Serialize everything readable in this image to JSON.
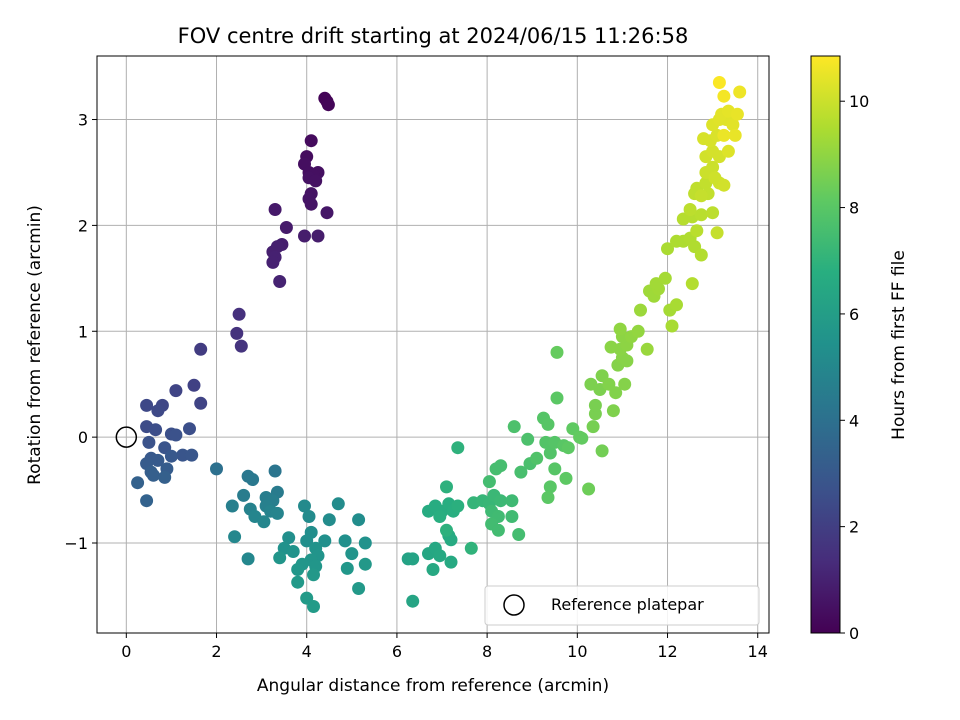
{
  "chart_data": {
    "type": "scatter",
    "title": "FOV centre drift starting at 2024/06/15 11:26:58",
    "xlabel": "Angular distance from reference (arcmin)",
    "ylabel": "Rotation from reference (arcmin)",
    "xlim": [
      -0.65,
      14.25
    ],
    "ylim": [
      -1.85,
      3.6
    ],
    "xticks": [
      0,
      2,
      4,
      6,
      8,
      10,
      12,
      14
    ],
    "yticks": [
      -1,
      0,
      1,
      2,
      3
    ],
    "grid": true,
    "legend": {
      "placement": "lower-right",
      "entries": [
        "Reference platepar"
      ]
    },
    "reference_point": {
      "x": 0,
      "y": 0
    },
    "colorbar": {
      "label": "Hours from first FF file",
      "range": [
        0,
        10.85
      ],
      "ticks": [
        0,
        2,
        4,
        6,
        8,
        10
      ],
      "colormap": "viridis"
    },
    "points": [
      {
        "x": 4.4,
        "y": 3.2,
        "c": 0.1
      },
      {
        "x": 4.45,
        "y": 3.17,
        "c": 0.1
      },
      {
        "x": 4.48,
        "y": 3.14,
        "c": 0.15
      },
      {
        "x": 4.1,
        "y": 2.8,
        "c": 0.3
      },
      {
        "x": 4.0,
        "y": 2.65,
        "c": 0.35
      },
      {
        "x": 3.95,
        "y": 2.58,
        "c": 0.4
      },
      {
        "x": 4.05,
        "y": 2.5,
        "c": 0.4
      },
      {
        "x": 4.25,
        "y": 2.5,
        "c": 0.45
      },
      {
        "x": 4.15,
        "y": 2.47,
        "c": 0.45
      },
      {
        "x": 4.05,
        "y": 2.45,
        "c": 0.5
      },
      {
        "x": 4.2,
        "y": 2.42,
        "c": 0.5
      },
      {
        "x": 4.1,
        "y": 2.3,
        "c": 0.55
      },
      {
        "x": 4.05,
        "y": 2.25,
        "c": 0.6
      },
      {
        "x": 4.1,
        "y": 2.2,
        "c": 0.6
      },
      {
        "x": 4.45,
        "y": 2.12,
        "c": 0.65
      },
      {
        "x": 3.3,
        "y": 2.15,
        "c": 0.75
      },
      {
        "x": 3.55,
        "y": 1.98,
        "c": 0.8
      },
      {
        "x": 3.95,
        "y": 1.9,
        "c": 0.85
      },
      {
        "x": 4.25,
        "y": 1.9,
        "c": 0.85
      },
      {
        "x": 3.45,
        "y": 1.82,
        "c": 0.9
      },
      {
        "x": 3.35,
        "y": 1.8,
        "c": 0.95
      },
      {
        "x": 3.25,
        "y": 1.75,
        "c": 0.95
      },
      {
        "x": 3.3,
        "y": 1.7,
        "c": 1.0
      },
      {
        "x": 3.25,
        "y": 1.65,
        "c": 1.0
      },
      {
        "x": 3.4,
        "y": 1.47,
        "c": 1.05
      },
      {
        "x": 2.5,
        "y": 1.16,
        "c": 1.5
      },
      {
        "x": 2.45,
        "y": 0.98,
        "c": 1.55
      },
      {
        "x": 2.55,
        "y": 0.86,
        "c": 1.6
      },
      {
        "x": 1.65,
        "y": 0.83,
        "c": 1.9
      },
      {
        "x": 1.5,
        "y": 0.49,
        "c": 2.1
      },
      {
        "x": 1.1,
        "y": 0.44,
        "c": 2.2
      },
      {
        "x": 1.65,
        "y": 0.32,
        "c": 2.2
      },
      {
        "x": 0.8,
        "y": 0.3,
        "c": 2.3
      },
      {
        "x": 0.45,
        "y": 0.3,
        "c": 2.35
      },
      {
        "x": 0.7,
        "y": 0.25,
        "c": 2.4
      },
      {
        "x": 0.45,
        "y": 0.1,
        "c": 2.5
      },
      {
        "x": 0.65,
        "y": 0.07,
        "c": 2.55
      },
      {
        "x": 1.4,
        "y": 0.08,
        "c": 2.6
      },
      {
        "x": 1.0,
        "y": 0.03,
        "c": 2.65
      },
      {
        "x": 1.1,
        "y": 0.02,
        "c": 2.7
      },
      {
        "x": 0.5,
        "y": -0.05,
        "c": 2.75
      },
      {
        "x": 0.85,
        "y": -0.1,
        "c": 2.8
      },
      {
        "x": 1.25,
        "y": -0.17,
        "c": 2.85
      },
      {
        "x": 1.45,
        "y": -0.17,
        "c": 2.9
      },
      {
        "x": 1.0,
        "y": -0.18,
        "c": 2.95
      },
      {
        "x": 0.55,
        "y": -0.2,
        "c": 3.0
      },
      {
        "x": 0.7,
        "y": -0.22,
        "c": 3.05
      },
      {
        "x": 0.45,
        "y": -0.25,
        "c": 3.1
      },
      {
        "x": 0.9,
        "y": -0.3,
        "c": 3.15
      },
      {
        "x": 0.55,
        "y": -0.33,
        "c": 3.2
      },
      {
        "x": 0.6,
        "y": -0.36,
        "c": 3.25
      },
      {
        "x": 0.85,
        "y": -0.38,
        "c": 3.3
      },
      {
        "x": 0.25,
        "y": -0.43,
        "c": 3.35
      },
      {
        "x": 0.45,
        "y": -0.6,
        "c": 3.4
      },
      {
        "x": 2.0,
        "y": -0.3,
        "c": 4.0
      },
      {
        "x": 3.3,
        "y": -0.32,
        "c": 4.2
      },
      {
        "x": 2.7,
        "y": -0.37,
        "c": 4.3
      },
      {
        "x": 2.8,
        "y": -0.4,
        "c": 4.35
      },
      {
        "x": 3.35,
        "y": -0.52,
        "c": 4.45
      },
      {
        "x": 2.6,
        "y": -0.55,
        "c": 4.5
      },
      {
        "x": 3.1,
        "y": -0.57,
        "c": 4.55
      },
      {
        "x": 3.25,
        "y": -0.6,
        "c": 4.6
      },
      {
        "x": 2.35,
        "y": -0.65,
        "c": 4.65
      },
      {
        "x": 3.1,
        "y": -0.65,
        "c": 4.7
      },
      {
        "x": 2.75,
        "y": -0.68,
        "c": 4.75
      },
      {
        "x": 3.2,
        "y": -0.7,
        "c": 4.8
      },
      {
        "x": 3.35,
        "y": -0.72,
        "c": 4.85
      },
      {
        "x": 2.85,
        "y": -0.75,
        "c": 4.9
      },
      {
        "x": 3.05,
        "y": -0.8,
        "c": 4.95
      },
      {
        "x": 2.4,
        "y": -0.94,
        "c": 5.0
      },
      {
        "x": 2.7,
        "y": -1.15,
        "c": 5.0
      },
      {
        "x": 3.95,
        "y": -0.65,
        "c": 5.1
      },
      {
        "x": 4.05,
        "y": -0.75,
        "c": 5.15
      },
      {
        "x": 4.5,
        "y": -0.78,
        "c": 5.2
      },
      {
        "x": 4.7,
        "y": -0.63,
        "c": 5.2
      },
      {
        "x": 5.15,
        "y": -0.78,
        "c": 5.25
      },
      {
        "x": 4.1,
        "y": -0.9,
        "c": 5.3
      },
      {
        "x": 3.6,
        "y": -0.95,
        "c": 5.35
      },
      {
        "x": 4.0,
        "y": -0.98,
        "c": 5.35
      },
      {
        "x": 4.4,
        "y": -0.98,
        "c": 5.4
      },
      {
        "x": 4.85,
        "y": -0.98,
        "c": 5.4
      },
      {
        "x": 5.3,
        "y": -1.0,
        "c": 5.45
      },
      {
        "x": 3.5,
        "y": -1.05,
        "c": 5.45
      },
      {
        "x": 4.2,
        "y": -1.05,
        "c": 5.5
      },
      {
        "x": 3.7,
        "y": -1.08,
        "c": 5.5
      },
      {
        "x": 5.0,
        "y": -1.1,
        "c": 5.55
      },
      {
        "x": 4.25,
        "y": -1.12,
        "c": 5.55
      },
      {
        "x": 3.4,
        "y": -1.14,
        "c": 5.6
      },
      {
        "x": 4.1,
        "y": -1.16,
        "c": 5.6
      },
      {
        "x": 3.9,
        "y": -1.2,
        "c": 5.65
      },
      {
        "x": 4.2,
        "y": -1.22,
        "c": 5.65
      },
      {
        "x": 4.9,
        "y": -1.24,
        "c": 5.7
      },
      {
        "x": 3.8,
        "y": -1.25,
        "c": 5.7
      },
      {
        "x": 5.3,
        "y": -1.2,
        "c": 5.75
      },
      {
        "x": 4.15,
        "y": -1.3,
        "c": 5.75
      },
      {
        "x": 3.8,
        "y": -1.37,
        "c": 5.8
      },
      {
        "x": 5.15,
        "y": -1.43,
        "c": 5.8
      },
      {
        "x": 4.0,
        "y": -1.52,
        "c": 5.85
      },
      {
        "x": 4.15,
        "y": -1.6,
        "c": 5.9
      },
      {
        "x": 6.25,
        "y": -1.15,
        "c": 6.2
      },
      {
        "x": 6.35,
        "y": -1.15,
        "c": 6.25
      },
      {
        "x": 6.35,
        "y": -1.55,
        "c": 6.3
      },
      {
        "x": 6.7,
        "y": -1.1,
        "c": 6.4
      },
      {
        "x": 6.85,
        "y": -1.05,
        "c": 6.45
      },
      {
        "x": 6.95,
        "y": -1.12,
        "c": 6.5
      },
      {
        "x": 6.8,
        "y": -1.25,
        "c": 6.5
      },
      {
        "x": 7.2,
        "y": -1.18,
        "c": 6.55
      },
      {
        "x": 7.15,
        "y": -0.93,
        "c": 6.6
      },
      {
        "x": 7.2,
        "y": -0.97,
        "c": 6.6
      },
      {
        "x": 6.7,
        "y": -0.7,
        "c": 6.65
      },
      {
        "x": 6.85,
        "y": -0.65,
        "c": 6.7
      },
      {
        "x": 7.0,
        "y": -0.7,
        "c": 6.7
      },
      {
        "x": 7.15,
        "y": -0.63,
        "c": 6.75
      },
      {
        "x": 6.95,
        "y": -0.75,
        "c": 6.8
      },
      {
        "x": 7.25,
        "y": -0.7,
        "c": 6.8
      },
      {
        "x": 7.35,
        "y": -0.65,
        "c": 6.85
      },
      {
        "x": 7.1,
        "y": -0.47,
        "c": 6.9
      },
      {
        "x": 7.35,
        "y": -0.1,
        "c": 6.95
      },
      {
        "x": 7.1,
        "y": -0.88,
        "c": 6.9
      },
      {
        "x": 7.65,
        "y": -1.05,
        "c": 7.0
      },
      {
        "x": 7.7,
        "y": -0.62,
        "c": 7.1
      },
      {
        "x": 7.9,
        "y": -0.6,
        "c": 7.15
      },
      {
        "x": 8.05,
        "y": -0.63,
        "c": 7.2
      },
      {
        "x": 8.15,
        "y": -0.55,
        "c": 7.25
      },
      {
        "x": 8.3,
        "y": -0.6,
        "c": 7.3
      },
      {
        "x": 8.55,
        "y": -0.6,
        "c": 7.35
      },
      {
        "x": 8.1,
        "y": -0.7,
        "c": 7.35
      },
      {
        "x": 8.25,
        "y": -0.75,
        "c": 7.4
      },
      {
        "x": 8.55,
        "y": -0.75,
        "c": 7.4
      },
      {
        "x": 8.1,
        "y": -0.82,
        "c": 7.45
      },
      {
        "x": 8.25,
        "y": -0.88,
        "c": 7.45
      },
      {
        "x": 8.7,
        "y": -0.92,
        "c": 7.5
      },
      {
        "x": 8.05,
        "y": -0.42,
        "c": 7.5
      },
      {
        "x": 8.2,
        "y": -0.3,
        "c": 7.55
      },
      {
        "x": 8.3,
        "y": -0.27,
        "c": 7.55
      },
      {
        "x": 8.75,
        "y": -0.33,
        "c": 7.6
      },
      {
        "x": 8.95,
        "y": -0.25,
        "c": 7.65
      },
      {
        "x": 8.6,
        "y": 0.1,
        "c": 7.7
      },
      {
        "x": 8.9,
        "y": -0.02,
        "c": 7.7
      },
      {
        "x": 9.1,
        "y": -0.2,
        "c": 7.8
      },
      {
        "x": 9.3,
        "y": -0.05,
        "c": 7.85
      },
      {
        "x": 9.4,
        "y": -0.15,
        "c": 7.85
      },
      {
        "x": 9.5,
        "y": -0.05,
        "c": 7.9
      },
      {
        "x": 9.25,
        "y": 0.18,
        "c": 7.9
      },
      {
        "x": 9.35,
        "y": 0.12,
        "c": 7.95
      },
      {
        "x": 9.5,
        "y": -0.3,
        "c": 7.95
      },
      {
        "x": 9.7,
        "y": -0.08,
        "c": 8.0
      },
      {
        "x": 9.4,
        "y": -0.47,
        "c": 8.0
      },
      {
        "x": 9.35,
        "y": -0.57,
        "c": 8.05
      },
      {
        "x": 9.55,
        "y": 0.37,
        "c": 8.05
      },
      {
        "x": 9.75,
        "y": -0.39,
        "c": 8.1
      },
      {
        "x": 9.8,
        "y": -0.1,
        "c": 8.1
      },
      {
        "x": 9.9,
        "y": 0.08,
        "c": 8.15
      },
      {
        "x": 10.05,
        "y": 0.0,
        "c": 8.2
      },
      {
        "x": 9.55,
        "y": 0.8,
        "c": 8.25
      },
      {
        "x": 10.1,
        "y": -0.01,
        "c": 8.2
      },
      {
        "x": 10.25,
        "y": -0.49,
        "c": 8.4
      },
      {
        "x": 10.55,
        "y": -0.13,
        "c": 8.5
      },
      {
        "x": 10.35,
        "y": 0.1,
        "c": 8.55
      },
      {
        "x": 10.4,
        "y": 0.22,
        "c": 8.6
      },
      {
        "x": 10.4,
        "y": 0.3,
        "c": 8.6
      },
      {
        "x": 10.5,
        "y": 0.45,
        "c": 8.65
      },
      {
        "x": 10.3,
        "y": 0.5,
        "c": 8.65
      },
      {
        "x": 10.55,
        "y": 0.58,
        "c": 8.7
      },
      {
        "x": 10.8,
        "y": 0.25,
        "c": 8.7
      },
      {
        "x": 10.85,
        "y": 0.42,
        "c": 8.75
      },
      {
        "x": 10.7,
        "y": 0.5,
        "c": 8.75
      },
      {
        "x": 11.05,
        "y": 0.5,
        "c": 8.8
      },
      {
        "x": 10.9,
        "y": 0.68,
        "c": 8.8
      },
      {
        "x": 11.0,
        "y": 0.75,
        "c": 8.85
      },
      {
        "x": 11.1,
        "y": 0.72,
        "c": 8.85
      },
      {
        "x": 10.75,
        "y": 0.85,
        "c": 8.9
      },
      {
        "x": 10.95,
        "y": 0.83,
        "c": 8.9
      },
      {
        "x": 11.1,
        "y": 0.87,
        "c": 8.95
      },
      {
        "x": 11.0,
        "y": 0.95,
        "c": 8.95
      },
      {
        "x": 10.95,
        "y": 1.02,
        "c": 9.0
      },
      {
        "x": 11.2,
        "y": 0.95,
        "c": 9.0
      },
      {
        "x": 11.35,
        "y": 1.0,
        "c": 9.05
      },
      {
        "x": 11.55,
        "y": 0.83,
        "c": 9.15
      },
      {
        "x": 11.4,
        "y": 1.2,
        "c": 9.2
      },
      {
        "x": 11.6,
        "y": 1.38,
        "c": 9.25
      },
      {
        "x": 11.7,
        "y": 1.33,
        "c": 9.25
      },
      {
        "x": 11.8,
        "y": 1.4,
        "c": 9.3
      },
      {
        "x": 11.75,
        "y": 1.45,
        "c": 9.3
      },
      {
        "x": 11.95,
        "y": 1.5,
        "c": 9.35
      },
      {
        "x": 12.05,
        "y": 1.2,
        "c": 9.35
      },
      {
        "x": 12.1,
        "y": 1.05,
        "c": 9.4
      },
      {
        "x": 12.2,
        "y": 1.25,
        "c": 9.4
      },
      {
        "x": 12.0,
        "y": 1.78,
        "c": 9.45
      },
      {
        "x": 12.2,
        "y": 1.85,
        "c": 9.5
      },
      {
        "x": 12.35,
        "y": 1.85,
        "c": 9.5
      },
      {
        "x": 12.5,
        "y": 1.88,
        "c": 9.55
      },
      {
        "x": 12.6,
        "y": 1.8,
        "c": 9.55
      },
      {
        "x": 12.55,
        "y": 1.45,
        "c": 9.6
      },
      {
        "x": 12.75,
        "y": 1.72,
        "c": 9.6
      },
      {
        "x": 12.35,
        "y": 2.06,
        "c": 9.65
      },
      {
        "x": 12.55,
        "y": 2.08,
        "c": 9.65
      },
      {
        "x": 12.75,
        "y": 2.1,
        "c": 9.7
      },
      {
        "x": 12.65,
        "y": 1.95,
        "c": 9.7
      },
      {
        "x": 12.5,
        "y": 2.15,
        "c": 9.75
      },
      {
        "x": 13.0,
        "y": 2.12,
        "c": 9.75
      },
      {
        "x": 12.6,
        "y": 2.3,
        "c": 9.8
      },
      {
        "x": 12.65,
        "y": 2.35,
        "c": 9.8
      },
      {
        "x": 12.85,
        "y": 2.4,
        "c": 9.85
      },
      {
        "x": 12.9,
        "y": 2.3,
        "c": 9.85
      },
      {
        "x": 12.75,
        "y": 2.28,
        "c": 9.9
      },
      {
        "x": 13.1,
        "y": 1.93,
        "c": 9.9
      },
      {
        "x": 12.85,
        "y": 2.5,
        "c": 10.0
      },
      {
        "x": 13.0,
        "y": 2.55,
        "c": 10.0
      },
      {
        "x": 13.05,
        "y": 2.45,
        "c": 10.05
      },
      {
        "x": 13.15,
        "y": 2.4,
        "c": 10.05
      },
      {
        "x": 13.25,
        "y": 2.38,
        "c": 10.1
      },
      {
        "x": 12.85,
        "y": 2.65,
        "c": 10.1
      },
      {
        "x": 13.0,
        "y": 2.7,
        "c": 10.15
      },
      {
        "x": 13.15,
        "y": 2.65,
        "c": 10.15
      },
      {
        "x": 12.8,
        "y": 2.82,
        "c": 10.2
      },
      {
        "x": 12.95,
        "y": 2.8,
        "c": 10.2
      },
      {
        "x": 13.1,
        "y": 2.85,
        "c": 10.25
      },
      {
        "x": 13.35,
        "y": 2.7,
        "c": 10.3
      },
      {
        "x": 13.0,
        "y": 2.95,
        "c": 10.3
      },
      {
        "x": 13.15,
        "y": 3.0,
        "c": 10.35
      },
      {
        "x": 13.3,
        "y": 3.0,
        "c": 10.35
      },
      {
        "x": 13.45,
        "y": 2.95,
        "c": 10.4
      },
      {
        "x": 13.2,
        "y": 3.05,
        "c": 10.4
      },
      {
        "x": 13.35,
        "y": 3.08,
        "c": 10.45
      },
      {
        "x": 13.55,
        "y": 3.05,
        "c": 10.5
      },
      {
        "x": 13.5,
        "y": 2.85,
        "c": 10.5
      },
      {
        "x": 13.25,
        "y": 2.85,
        "c": 10.55
      },
      {
        "x": 13.6,
        "y": 3.26,
        "c": 10.6
      },
      {
        "x": 13.15,
        "y": 3.35,
        "c": 10.8
      },
      {
        "x": 13.25,
        "y": 3.22,
        "c": 10.7
      }
    ]
  }
}
